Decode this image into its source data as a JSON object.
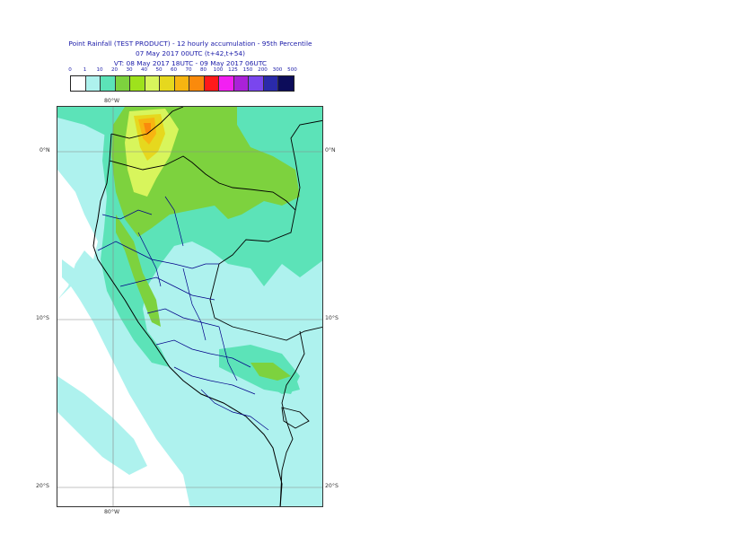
{
  "title": {
    "line1": "Point Rainfall (TEST PRODUCT) - 12 hourly accumulation - 95th Percentile",
    "line2": "07 May 2017 00UTC (t+42,t+54)",
    "line3": "VT: 08 May 2017 18UTC - 09 May 2017 06UTC"
  },
  "legend": {
    "thresholds": [
      "0",
      "1",
      "10",
      "20",
      "30",
      "40",
      "50",
      "60",
      "70",
      "80",
      "100",
      "125",
      "150",
      "200",
      "300",
      "500"
    ],
    "colors": [
      "#ffffff",
      "#aef2ee",
      "#5ce3b8",
      "#7dd23e",
      "#9ee21c",
      "#d8f55c",
      "#e6d81e",
      "#f7b511",
      "#fa8a0c",
      "#ff1a1a",
      "#f220f2",
      "#aa22d8",
      "#7a46ee",
      "#2a2aaa",
      "#0c0c5a"
    ]
  },
  "axes": {
    "top_lon": "80°W",
    "bottom_lon": "80°W",
    "lat_labels": [
      "0°N",
      "10°S",
      "20°S"
    ]
  }
}
